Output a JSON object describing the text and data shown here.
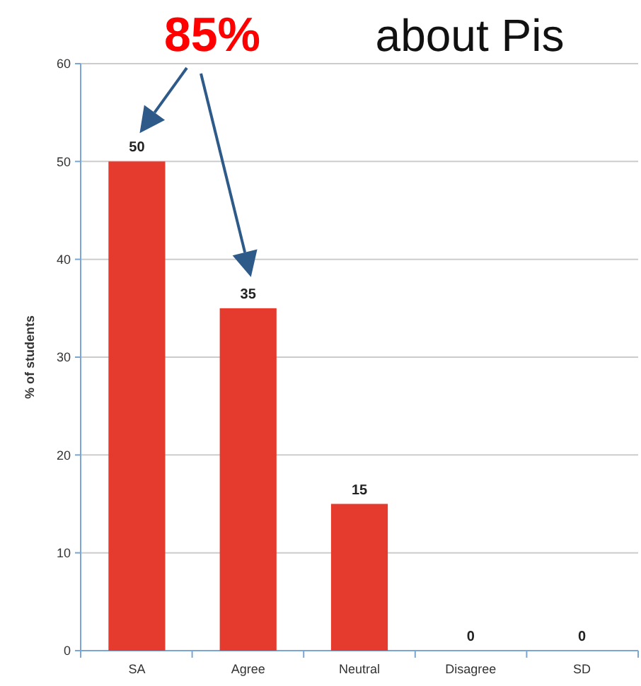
{
  "chart_data": {
    "type": "bar",
    "ylabel": "% of students",
    "categories": [
      "SA",
      "Agree",
      "Neutral",
      "Disagree",
      "SD"
    ],
    "values": [
      50,
      35,
      15,
      0,
      0
    ],
    "color": "#e53a2e",
    "ylim": [
      0,
      60
    ],
    "yticks": [
      0,
      10,
      20,
      30,
      40,
      50,
      60
    ],
    "grid": "y",
    "data_labels": true,
    "annotations": [
      "85%",
      "about Pis"
    ]
  }
}
